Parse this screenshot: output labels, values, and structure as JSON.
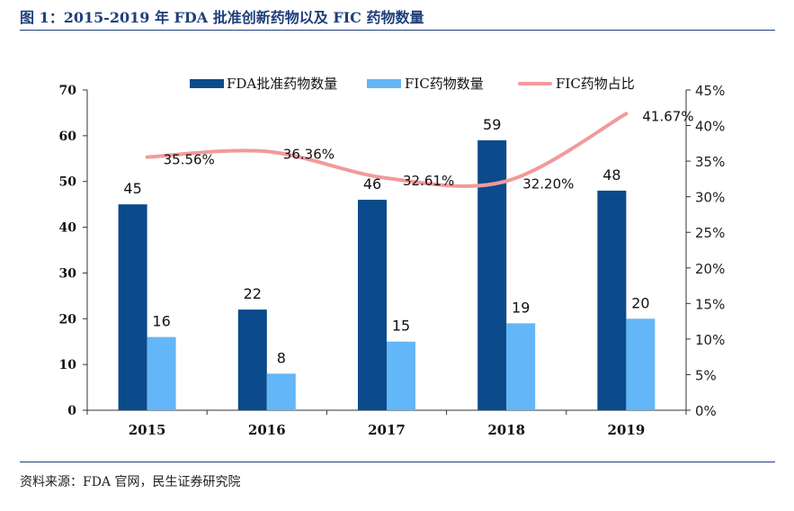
{
  "title": "图 1：2015-2019 年 FDA 批准创新药物以及 FIC 药物数量",
  "source": "资料来源：FDA 官网，民生证券研究院",
  "colors": {
    "fda": "#0b4a8b",
    "fic": "#63b6f8",
    "ratio": "#f29a9a",
    "rule": "#1f3f7a",
    "axis": "#333333"
  },
  "chart_data": {
    "type": "bar",
    "categories": [
      "2015",
      "2016",
      "2017",
      "2018",
      "2019"
    ],
    "series": [
      {
        "name": "FDA批准药物数量",
        "type": "bar",
        "axis": "left",
        "values": [
          45,
          22,
          46,
          59,
          48
        ],
        "labels": [
          "45",
          "22",
          "46",
          "59",
          "48"
        ]
      },
      {
        "name": "FIC药物数量",
        "type": "bar",
        "axis": "left",
        "values": [
          16,
          8,
          15,
          19,
          20
        ],
        "labels": [
          "16",
          "8",
          "15",
          "19",
          "20"
        ]
      },
      {
        "name": "FIC药物占比",
        "type": "line",
        "axis": "right",
        "values": [
          35.56,
          36.36,
          32.61,
          32.2,
          41.67
        ],
        "labels": [
          "35.56%",
          "36.36%",
          "32.61%",
          "32.20%",
          "41.67%"
        ]
      }
    ],
    "ylim": [
      0,
      70
    ],
    "yticks": [
      "0",
      "10",
      "20",
      "30",
      "40",
      "50",
      "60",
      "70"
    ],
    "y2lim": [
      0,
      45
    ],
    "y2ticks": [
      "0%",
      "5%",
      "10%",
      "15%",
      "20%",
      "25%",
      "30%",
      "35%",
      "40%",
      "45%"
    ],
    "grid": false,
    "legend_position": "top"
  }
}
